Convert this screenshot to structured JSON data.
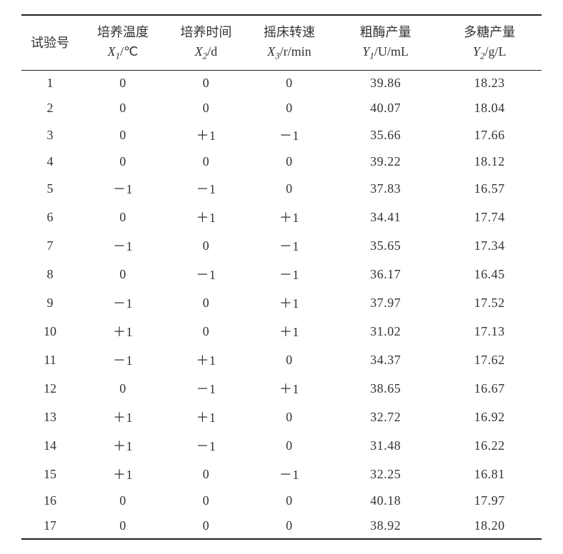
{
  "table": {
    "type": "table",
    "background_color": "#ffffff",
    "text_color": "#333333",
    "border_color": "#222222",
    "font_size_body": 18,
    "font_size_sub": 13,
    "headers": {
      "col0_line1": "试验号",
      "col1_line1": "培养温度",
      "col1_line2_var": "X",
      "col1_line2_sub": "1",
      "col1_line2_unit": "/℃",
      "col2_line1": "培养时间",
      "col2_line2_var": "X",
      "col2_line2_sub": "2",
      "col2_line2_unit": "/d",
      "col3_line1": "摇床转速",
      "col3_line2_var": "X",
      "col3_line2_sub": "3",
      "col3_line2_unit": "/r/min",
      "col4_line1": "粗酶产量",
      "col4_line2_var": "Y",
      "col4_line2_sub": "1",
      "col4_line2_unit": "/U/mL",
      "col5_line1": "多糖产量",
      "col5_line2_var": "Y",
      "col5_line2_sub": "2",
      "col5_line2_unit": "/g/L"
    },
    "rows": [
      {
        "n": "1",
        "x1": "0",
        "x2": "0",
        "x3": "0",
        "y1": "39.86",
        "y2": "18.23"
      },
      {
        "n": "2",
        "x1": "0",
        "x2": "0",
        "x3": "0",
        "y1": "40.07",
        "y2": "18.04"
      },
      {
        "n": "3",
        "x1": "0",
        "x2": "＋1",
        "x3": "－1",
        "y1": "35.66",
        "y2": "17.66"
      },
      {
        "n": "4",
        "x1": "0",
        "x2": "0",
        "x3": "0",
        "y1": "39.22",
        "y2": "18.12"
      },
      {
        "n": "5",
        "x1": "－1",
        "x2": "－1",
        "x3": "0",
        "y1": "37.83",
        "y2": "16.57"
      },
      {
        "n": "6",
        "x1": "0",
        "x2": "＋1",
        "x3": "＋1",
        "y1": "34.41",
        "y2": "17.74"
      },
      {
        "n": "7",
        "x1": "－1",
        "x2": "0",
        "x3": "－1",
        "y1": "35.65",
        "y2": "17.34"
      },
      {
        "n": "8",
        "x1": "0",
        "x2": "－1",
        "x3": "－1",
        "y1": "36.17",
        "y2": "16.45"
      },
      {
        "n": "9",
        "x1": "－1",
        "x2": "0",
        "x3": "＋1",
        "y1": "37.97",
        "y2": "17.52"
      },
      {
        "n": "10",
        "x1": "＋1",
        "x2": "0",
        "x3": "＋1",
        "y1": "31.02",
        "y2": "17.13"
      },
      {
        "n": "11",
        "x1": "－1",
        "x2": "＋1",
        "x3": "0",
        "y1": "34.37",
        "y2": "17.62"
      },
      {
        "n": "12",
        "x1": "0",
        "x2": "－1",
        "x3": "＋1",
        "y1": "38.65",
        "y2": "16.67"
      },
      {
        "n": "13",
        "x1": "＋1",
        "x2": "＋1",
        "x3": "0",
        "y1": "32.72",
        "y2": "16.92"
      },
      {
        "n": "14",
        "x1": "＋1",
        "x2": "－1",
        "x3": "0",
        "y1": "31.48",
        "y2": "16.22"
      },
      {
        "n": "15",
        "x1": "＋1",
        "x2": "0",
        "x3": "－1",
        "y1": "32.25",
        "y2": "16.81"
      },
      {
        "n": "16",
        "x1": "0",
        "x2": "0",
        "x3": "0",
        "y1": "40.18",
        "y2": "17.97"
      },
      {
        "n": "17",
        "x1": "0",
        "x2": "0",
        "x3": "0",
        "y1": "38.92",
        "y2": "18.20"
      }
    ]
  }
}
